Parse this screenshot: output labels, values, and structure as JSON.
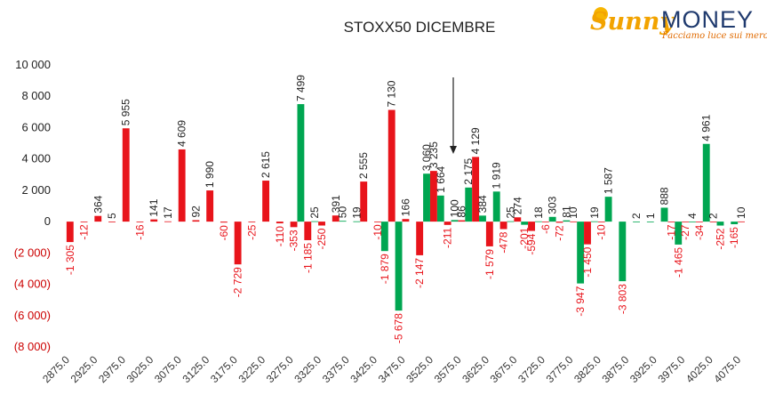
{
  "logo": {
    "part1": "Sunny",
    "part2": "MONEY",
    "tagline": "Facciamo luce sui mercati"
  },
  "colors": {
    "positive": "#00a651",
    "negative": "#e8141b",
    "neg_axis_text": "#cc0000"
  },
  "chart_data": {
    "type": "bar",
    "title": "STOXX50 DICEMBRE",
    "xlabel": "",
    "ylabel": "",
    "ylim": [
      -8000,
      10000
    ],
    "grid": false,
    "ytick_values": [
      10000,
      8000,
      6000,
      4000,
      2000,
      0,
      -2000,
      -4000,
      -6000,
      -8000
    ],
    "ytick_labels": [
      "10 000",
      "8 000",
      "6 000",
      "4 000",
      "2 000",
      "0",
      "(2 000)",
      "(4 000)",
      "(6 000)",
      "(8 000)"
    ],
    "categories": [
      "2875.0",
      "2900.0",
      "2925.0",
      "2950.0",
      "2975.0",
      "3000.0",
      "3025.0",
      "3050.0",
      "3075.0",
      "3100.0",
      "3125.0",
      "3150.0",
      "3175.0",
      "3200.0",
      "3225.0",
      "3250.0",
      "3275.0",
      "3300.0",
      "3325.0",
      "3350.0",
      "3375.0",
      "3400.0",
      "3425.0",
      "3450.0",
      "3475.0",
      "3500.0",
      "3525.0",
      "3550.0",
      "3575.0",
      "3600.0",
      "3625.0",
      "3650.0",
      "3675.0",
      "3700.0",
      "3725.0",
      "3750.0",
      "3775.0",
      "3800.0",
      "3825.0",
      "3850.0",
      "3875.0",
      "3900.0",
      "3925.0",
      "3950.0",
      "3975.0",
      "4000.0",
      "4025.0",
      "4050.0",
      "4075.0"
    ],
    "xtick_labels": [
      "2875.0",
      "2925.0",
      "2975.0",
      "3025.0",
      "3075.0",
      "3125.0",
      "3175.0",
      "3225.0",
      "3275.0",
      "3325.0",
      "3375.0",
      "3425.0",
      "3475.0",
      "3525.0",
      "3575.0",
      "3625.0",
      "3675.0",
      "3725.0",
      "3775.0",
      "3825.0",
      "3875.0",
      "3925.0",
      "3975.0",
      "4025.0",
      "4075.0"
    ],
    "series": [
      {
        "color": "#00a651",
        "values": [
          0,
          0,
          0,
          0,
          0,
          0,
          0,
          0,
          0,
          0,
          0,
          0,
          0,
          0,
          0,
          0,
          0,
          7499,
          25,
          0,
          50,
          19,
          0,
          -1879,
          -5678,
          0,
          3060,
          1664,
          100,
          2175,
          384,
          1919,
          25,
          -201,
          18,
          303,
          81,
          -3947,
          19,
          1587,
          -3803,
          2,
          1,
          888,
          -1465,
          4,
          4961,
          -252,
          -165
        ]
      },
      {
        "color": "#e8141b",
        "values": [
          -1305,
          -12,
          364,
          5,
          5955,
          -16,
          141,
          17,
          4609,
          92,
          1990,
          -60,
          -2729,
          -25,
          2615,
          -110,
          -353,
          -1185,
          -250,
          391,
          0,
          2555,
          -10,
          7130,
          166,
          -2147,
          3235,
          -211,
          86,
          4129,
          -1579,
          -478,
          274,
          -594,
          -6,
          -72,
          10,
          -1450,
          -10,
          0,
          0,
          0,
          0,
          -17,
          -27,
          -34,
          2,
          0,
          10
        ]
      }
    ],
    "bar_labels": {
      "positive": [
        "",
        "",
        "",
        "",
        "",
        "",
        "",
        "",
        "",
        "",
        "",
        "",
        "",
        "",
        "",
        "",
        "",
        "7 499",
        "25",
        "",
        "50",
        "19",
        "",
        "-1 879",
        "-5 678",
        "",
        "3 060",
        "1 664",
        "100",
        "2 175",
        "384",
        "1 919",
        "25",
        "-201",
        "18",
        "303",
        "81",
        "-3 947",
        "19",
        "1 587",
        "-3 803",
        "2",
        "1",
        "888",
        "-1 465",
        "4",
        "4 961",
        "-252",
        "-165"
      ],
      "negative": [
        "-1 305",
        "-12",
        "364",
        "5",
        "5 955",
        "-16",
        "141",
        "17",
        "4 609",
        "92",
        "1 990",
        "-60",
        "-2 729",
        "-25",
        "2 615",
        "-110",
        "-353",
        "-1 185",
        "-250",
        "391",
        "",
        "2 555",
        "-10",
        "7 130",
        "166",
        "-2 147",
        "3 235",
        "-211",
        "86",
        "4 129",
        "-1 579",
        "-478",
        "274",
        "-594",
        "-6",
        "-72",
        "10",
        "-1 450",
        "-10",
        "",
        "",
        "",
        "",
        "-17",
        "-27",
        "-34",
        "2",
        "",
        "10"
      ]
    }
  }
}
